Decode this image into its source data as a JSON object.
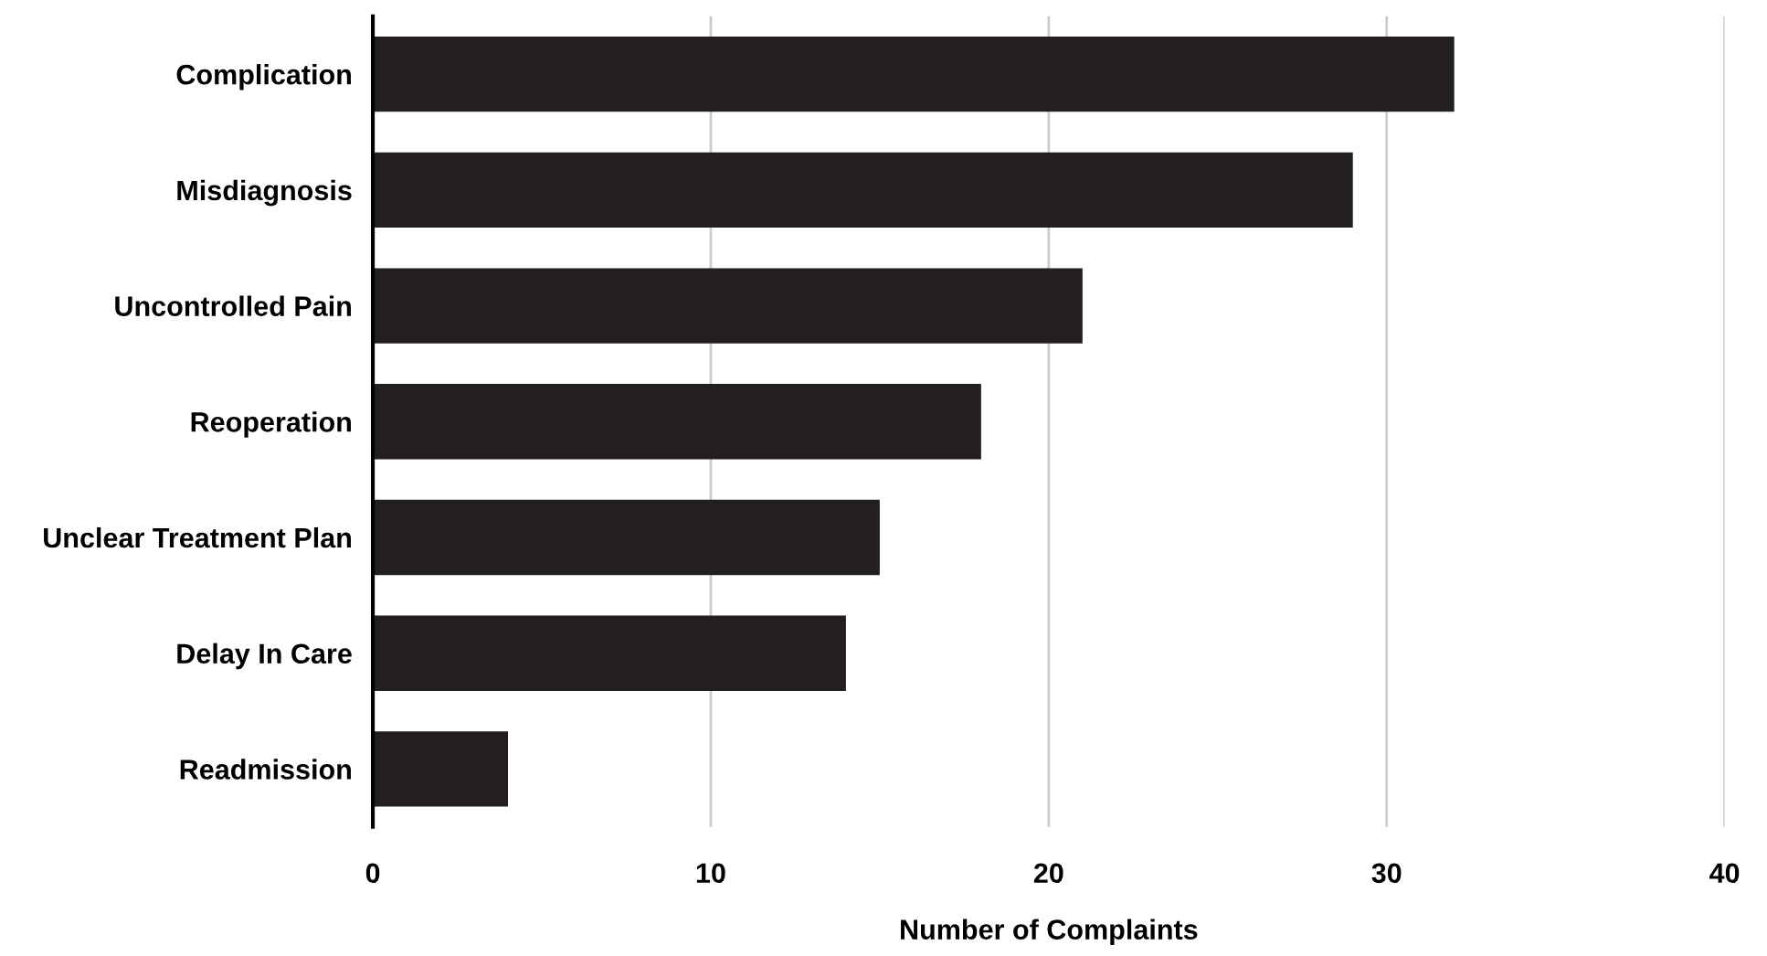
{
  "chart_data": {
    "type": "bar",
    "orientation": "horizontal",
    "xlabel": "Number of Complaints",
    "categories": [
      "Complication",
      "Misdiagnosis",
      "Uncontrolled Pain",
      "Reoperation",
      "Unclear Treatment Plan",
      "Delay In Care",
      "Readmission"
    ],
    "values": [
      32,
      29,
      21,
      18,
      15,
      14,
      4
    ],
    "color": "#231f20",
    "xlim": [
      0,
      40
    ],
    "xticks": [
      0,
      10,
      20,
      30,
      40
    ],
    "grid": "x",
    "legend": false
  }
}
